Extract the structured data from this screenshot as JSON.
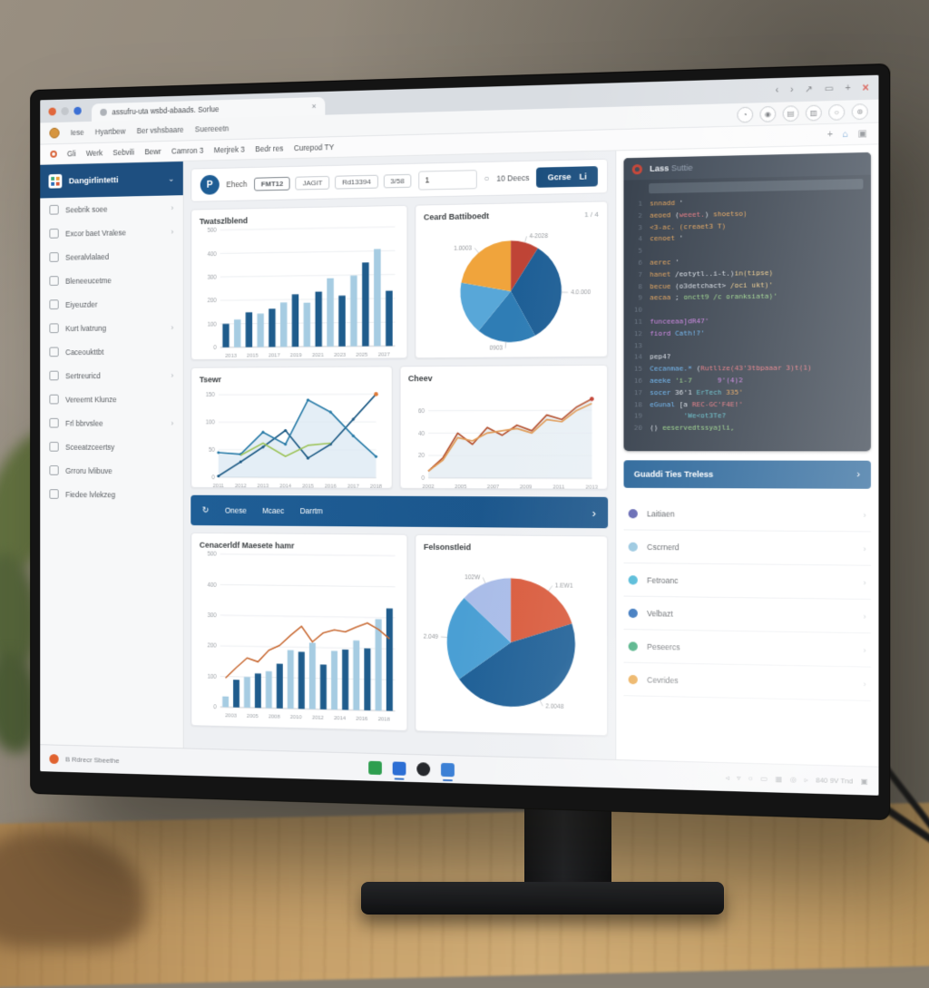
{
  "ui": {
    "chevron": "›",
    "down_chevron": "⌄"
  },
  "browser": {
    "tab": {
      "title": "assufru-uta  wsbd-abaads. Sorlue",
      "close": "×"
    },
    "window_icons": {
      "back": "‹",
      "forward": "›",
      "share": "↗",
      "window": "▭",
      "new_tab": "+",
      "close": "×"
    },
    "bookmarks": [
      {
        "label": "Iese"
      },
      {
        "label": "Hyartbew"
      },
      {
        "label": "Ber vshsbaare"
      },
      {
        "label": "Suereeetn"
      }
    ],
    "action_icons": [
      "◔",
      "◉",
      "▤",
      "▥",
      "○",
      "⊛"
    ],
    "menus": [
      {
        "label": "Gli"
      },
      {
        "label": "Werk"
      },
      {
        "label": "Sebvili"
      },
      {
        "label": "Bewr"
      },
      {
        "label": "Camron 3"
      },
      {
        "label": "Merjrek 3"
      },
      {
        "label": "Bedr res"
      },
      {
        "label": "Curepod TY"
      }
    ],
    "page_icons": {
      "plus": "+",
      "home": "⌂",
      "frame": "▣"
    }
  },
  "sidebar": {
    "title": "Dangirlintetti",
    "items": [
      {
        "label": "Seebrik soee",
        "chevron": true
      },
      {
        "label": "Excor baet Vralese",
        "chevron": true
      },
      {
        "label": "Seeralvlalaed",
        "chevron": false
      },
      {
        "label": "Bleneeucetme",
        "chevron": false
      },
      {
        "label": "Eiyeuzder",
        "chevron": false
      },
      {
        "label": "Kurt lvatrung",
        "chevron": true
      },
      {
        "label": "Caceoukttbt",
        "chevron": false
      },
      {
        "label": "Sertreuricd",
        "chevron": true
      },
      {
        "label": "Vereernt Klunze",
        "chevron": false
      },
      {
        "label": "Frl bbrvslee",
        "chevron": true
      },
      {
        "label": "Sceeatzceertsy",
        "chevron": false
      },
      {
        "label": "Grroru lvlibuve",
        "chevron": false
      },
      {
        "label": "Fiedee lvlekzeg",
        "chevron": false
      }
    ]
  },
  "toolbar": {
    "brand_initial": "P",
    "brand": "Ehech",
    "chips": [
      {
        "label": "FMT12",
        "active": true
      },
      {
        "label": "JAGIT",
        "active": false
      },
      {
        "label": "Rd13394",
        "active": false
      },
      {
        "label": "3/58",
        "active": false
      }
    ],
    "input_value": "1",
    "search_icon": "○",
    "results": "10 Deecs",
    "go_label": "Gcrse",
    "go_suffix": "Li"
  },
  "cards": {
    "pie1_corner": "1 / 4"
  },
  "banner": {
    "refresh_icon": "↻",
    "items": [
      {
        "label": "Onese"
      },
      {
        "label": "Mcaec"
      },
      {
        "label": "Darrtm"
      }
    ],
    "chevron": "›"
  },
  "code_panel": {
    "title_bold": "Lass",
    "title_rest": "Suttie",
    "lines": [
      [
        [
          "snnadd",
          "o"
        ],
        [
          " '",
          "w"
        ]
      ],
      [
        [
          "aeoed",
          "o"
        ],
        [
          " (",
          "w"
        ],
        [
          "weeet.",
          "r"
        ],
        [
          ")",
          "w"
        ],
        [
          " shoetso)",
          "o"
        ]
      ],
      [
        [
          "<3-ac.",
          "o"
        ],
        [
          " (creaet3 T)",
          "o"
        ]
      ],
      [
        [
          "cenoet",
          "o"
        ],
        [
          " '",
          "w"
        ]
      ],
      [],
      [
        [
          "aerec",
          "o"
        ],
        [
          " '",
          "w"
        ]
      ],
      [
        [
          "hanet",
          "o"
        ],
        [
          " /eotytl..i-t.)",
          "w"
        ],
        [
          "in(tipse)",
          "y"
        ]
      ],
      [
        [
          "becue",
          "o"
        ],
        [
          " (o3detchact>",
          "w"
        ],
        [
          " /oci ukt)'",
          "y"
        ]
      ],
      [
        [
          "aecaa",
          "o"
        ],
        [
          " ; ",
          "w"
        ],
        [
          "onctt9 /c oranksiata)'",
          "g"
        ]
      ],
      [],
      [
        [
          "funceeaa]dR47'",
          "p"
        ]
      ],
      [
        [
          "fiord",
          "p"
        ],
        [
          " Cath!?'",
          "b"
        ]
      ],
      [],
      [
        [
          "pep4?",
          "w"
        ]
      ],
      [
        [
          "Cecanmae.*",
          "b"
        ],
        [
          " (",
          "w"
        ],
        [
          "Rutllze(43'3tbpaaar 3)t(1)",
          "r"
        ]
      ],
      [
        [
          "aeeke",
          "b"
        ],
        [
          " 'i-7",
          "g"
        ],
        [
          "      9'(4)2",
          "p"
        ]
      ],
      [
        [
          "socer",
          "b"
        ],
        [
          " 36'1 ",
          "w"
        ],
        [
          "ErTech",
          "c"
        ],
        [
          " 335'",
          "o"
        ]
      ],
      [
        [
          "eGunal",
          "b"
        ],
        [
          " [a ",
          "w"
        ],
        [
          "REC-GC'F4E!'",
          "r"
        ]
      ],
      [
        [
          "        'We<ot3Te?",
          "c"
        ]
      ],
      [
        [
          "() ",
          "w"
        ],
        [
          "eeservedtssyajli,",
          "g"
        ]
      ]
    ]
  },
  "right_list": {
    "header": "Guaddi Ties Treless",
    "chevron": "›",
    "items": [
      {
        "label": "Laitiaen",
        "color": "#5b5fae"
      },
      {
        "label": "Cscrnerd",
        "color": "#93c4de"
      },
      {
        "label": "Fetroanc",
        "color": "#49b6d6"
      },
      {
        "label": "Velbazt",
        "color": "#2f6fba"
      },
      {
        "label": "Peseercs",
        "color": "#3aa876"
      },
      {
        "label": "Cevrides",
        "color": "#e8a03c"
      }
    ]
  },
  "statusbar": {
    "text": "B Rdrecr Sbeethe"
  },
  "taskbar": {
    "apps": [
      {
        "color": "#2e9e4f",
        "active": false,
        "round": false
      },
      {
        "color": "#2d6fd4",
        "active": true,
        "round": false
      },
      {
        "color": "#26282c",
        "active": false,
        "round": true
      },
      {
        "color": "#3a7fd5",
        "active": true,
        "round": false
      }
    ]
  },
  "tray": {
    "icons": [
      "◃",
      "▿",
      "○",
      "▭",
      "▦",
      "◎",
      "▹"
    ],
    "clock": "840 9V Tnd",
    "badge": "▣"
  },
  "chart_data": [
    {
      "type": "bar",
      "title": "Twatszlblend",
      "categories": [
        "2013",
        "2015",
        "2017",
        "2019",
        "2021",
        "2023",
        "2025",
        "2027"
      ],
      "values": [
        100,
        118,
        148,
        142,
        162,
        188,
        222,
        186,
        232,
        288,
        214,
        298,
        352,
        408,
        232
      ],
      "colors": [
        "#1f5c8c",
        "#a6cce2"
      ],
      "yticks": [
        0,
        100,
        200,
        300,
        400,
        500
      ],
      "ylim": [
        0,
        500
      ],
      "xlabel": "",
      "ylabel": ""
    },
    {
      "type": "pie",
      "title": "Ceard Battiboedt",
      "slices": [
        {
          "label": "4-2028",
          "value": 9,
          "color": "#bf4436"
        },
        {
          "label": "4.0.000",
          "value": 33,
          "color": "#1e5f96"
        },
        {
          "label": "0903",
          "value": 19,
          "color": "#2f7db5"
        },
        {
          "label": "",
          "value": 17,
          "color": "#58a7d8"
        },
        {
          "label": "1.0003",
          "value": 22,
          "color": "#f0a43c"
        }
      ]
    },
    {
      "type": "line",
      "title": "Tsewr",
      "x": [
        "2011",
        "2012",
        "2013",
        "2014",
        "2015",
        "2016",
        "2017",
        "2018"
      ],
      "yticks": [
        0,
        50,
        100,
        150
      ],
      "ylim": [
        0,
        160
      ],
      "series": [
        {
          "name": "A",
          "color": "#1f5c86",
          "values": [
            2,
            28,
            55,
            85,
            35,
            60,
            105,
            150
          ],
          "markers": true,
          "end_dot": "#e07b39"
        },
        {
          "name": "B",
          "color": "#2a7ca8",
          "values": [
            45,
            42,
            82,
            60,
            140,
            118,
            75,
            38
          ],
          "markers": true,
          "area": "#dbe8f3"
        },
        {
          "name": "C",
          "color": "#9ec45c",
          "values": [
            null,
            40,
            62,
            38,
            58,
            62,
            null,
            null
          ],
          "markers": false
        }
      ]
    },
    {
      "type": "line",
      "title": "Cheev",
      "x": [
        "2002",
        "2005",
        "2007",
        "2009",
        "2011",
        "2013"
      ],
      "yticks": [
        0,
        20,
        40,
        60
      ],
      "ylim": [
        0,
        80
      ],
      "series": [
        {
          "name": "A",
          "color": "#b5502e",
          "values": [
            6,
            18,
            40,
            30,
            45,
            38,
            47,
            42,
            56,
            52,
            63,
            70
          ],
          "markers": false,
          "end_dot": "#c0392b",
          "area": "#e2ebf2"
        },
        {
          "name": "B",
          "color": "#e09a55",
          "values": [
            6,
            16,
            36,
            33,
            40,
            42,
            44,
            40,
            52,
            50,
            60,
            66
          ],
          "markers": false
        }
      ]
    },
    {
      "type": "combo",
      "title": "Cenacerldf Maesete hamr",
      "categories": [
        "2003",
        "2005",
        "2008",
        "2010",
        "2012",
        "2014",
        "2016",
        "2018"
      ],
      "values": [
        35,
        90,
        100,
        112,
        120,
        145,
        190,
        185,
        215,
        145,
        190,
        195,
        225,
        200,
        295,
        330
      ],
      "colors": [
        "#a6cce2",
        "#1f5c8c"
      ],
      "line": {
        "color": "#c96b35",
        "values": [
          95,
          130,
          162,
          150,
          188,
          205,
          238,
          268,
          218,
          248,
          258,
          252,
          268,
          282,
          262,
          232
        ]
      },
      "yticks": [
        0,
        100,
        200,
        300,
        400,
        500
      ],
      "ylim": [
        0,
        500
      ]
    },
    {
      "type": "pie",
      "title": "Felsonstleid",
      "slices": [
        {
          "label": "1.EW1",
          "value": 20,
          "color": "#d95b3d"
        },
        {
          "label": "2.0048",
          "value": 45,
          "color": "#1e5f96"
        },
        {
          "label": "2.049",
          "value": 22,
          "color": "#4a9fd4"
        },
        {
          "label": "102W",
          "value": 13,
          "color": "#a9bce8"
        }
      ]
    }
  ]
}
